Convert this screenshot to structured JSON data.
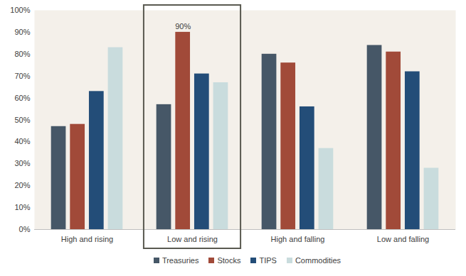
{
  "chart_data": {
    "type": "bar",
    "categories": [
      "High and rising",
      "Low and rising",
      "High and falling",
      "Low and falling"
    ],
    "series": [
      {
        "name": "Treasuries",
        "color": "#465767",
        "values": [
          47,
          57,
          80,
          84
        ]
      },
      {
        "name": "Stocks",
        "color": "#a14a39",
        "values": [
          48,
          90,
          76,
          81
        ]
      },
      {
        "name": "TIPS",
        "color": "#234d78",
        "values": [
          63,
          71,
          56,
          72
        ]
      },
      {
        "name": "Commodities",
        "color": "#c9dcdd",
        "values": [
          83,
          67,
          37,
          28
        ]
      }
    ],
    "ylim": [
      0,
      100
    ],
    "yticks": [
      {
        "value": 0,
        "label": "0%"
      },
      {
        "value": 10,
        "label": "10%"
      },
      {
        "value": 20,
        "label": "20%"
      },
      {
        "value": 30,
        "label": "30%"
      },
      {
        "value": 40,
        "label": "40%"
      },
      {
        "value": 50,
        "label": "50%"
      },
      {
        "value": 60,
        "label": "60%"
      },
      {
        "value": 70,
        "label": "70%"
      },
      {
        "value": 80,
        "label": "80%"
      },
      {
        "value": 90,
        "label": "90%"
      },
      {
        "value": 100,
        "label": "100%"
      }
    ],
    "grid": false,
    "legend": "bottom",
    "annotations": [
      {
        "category": "Low and rising",
        "series": "Stocks",
        "text": "90%"
      }
    ]
  }
}
